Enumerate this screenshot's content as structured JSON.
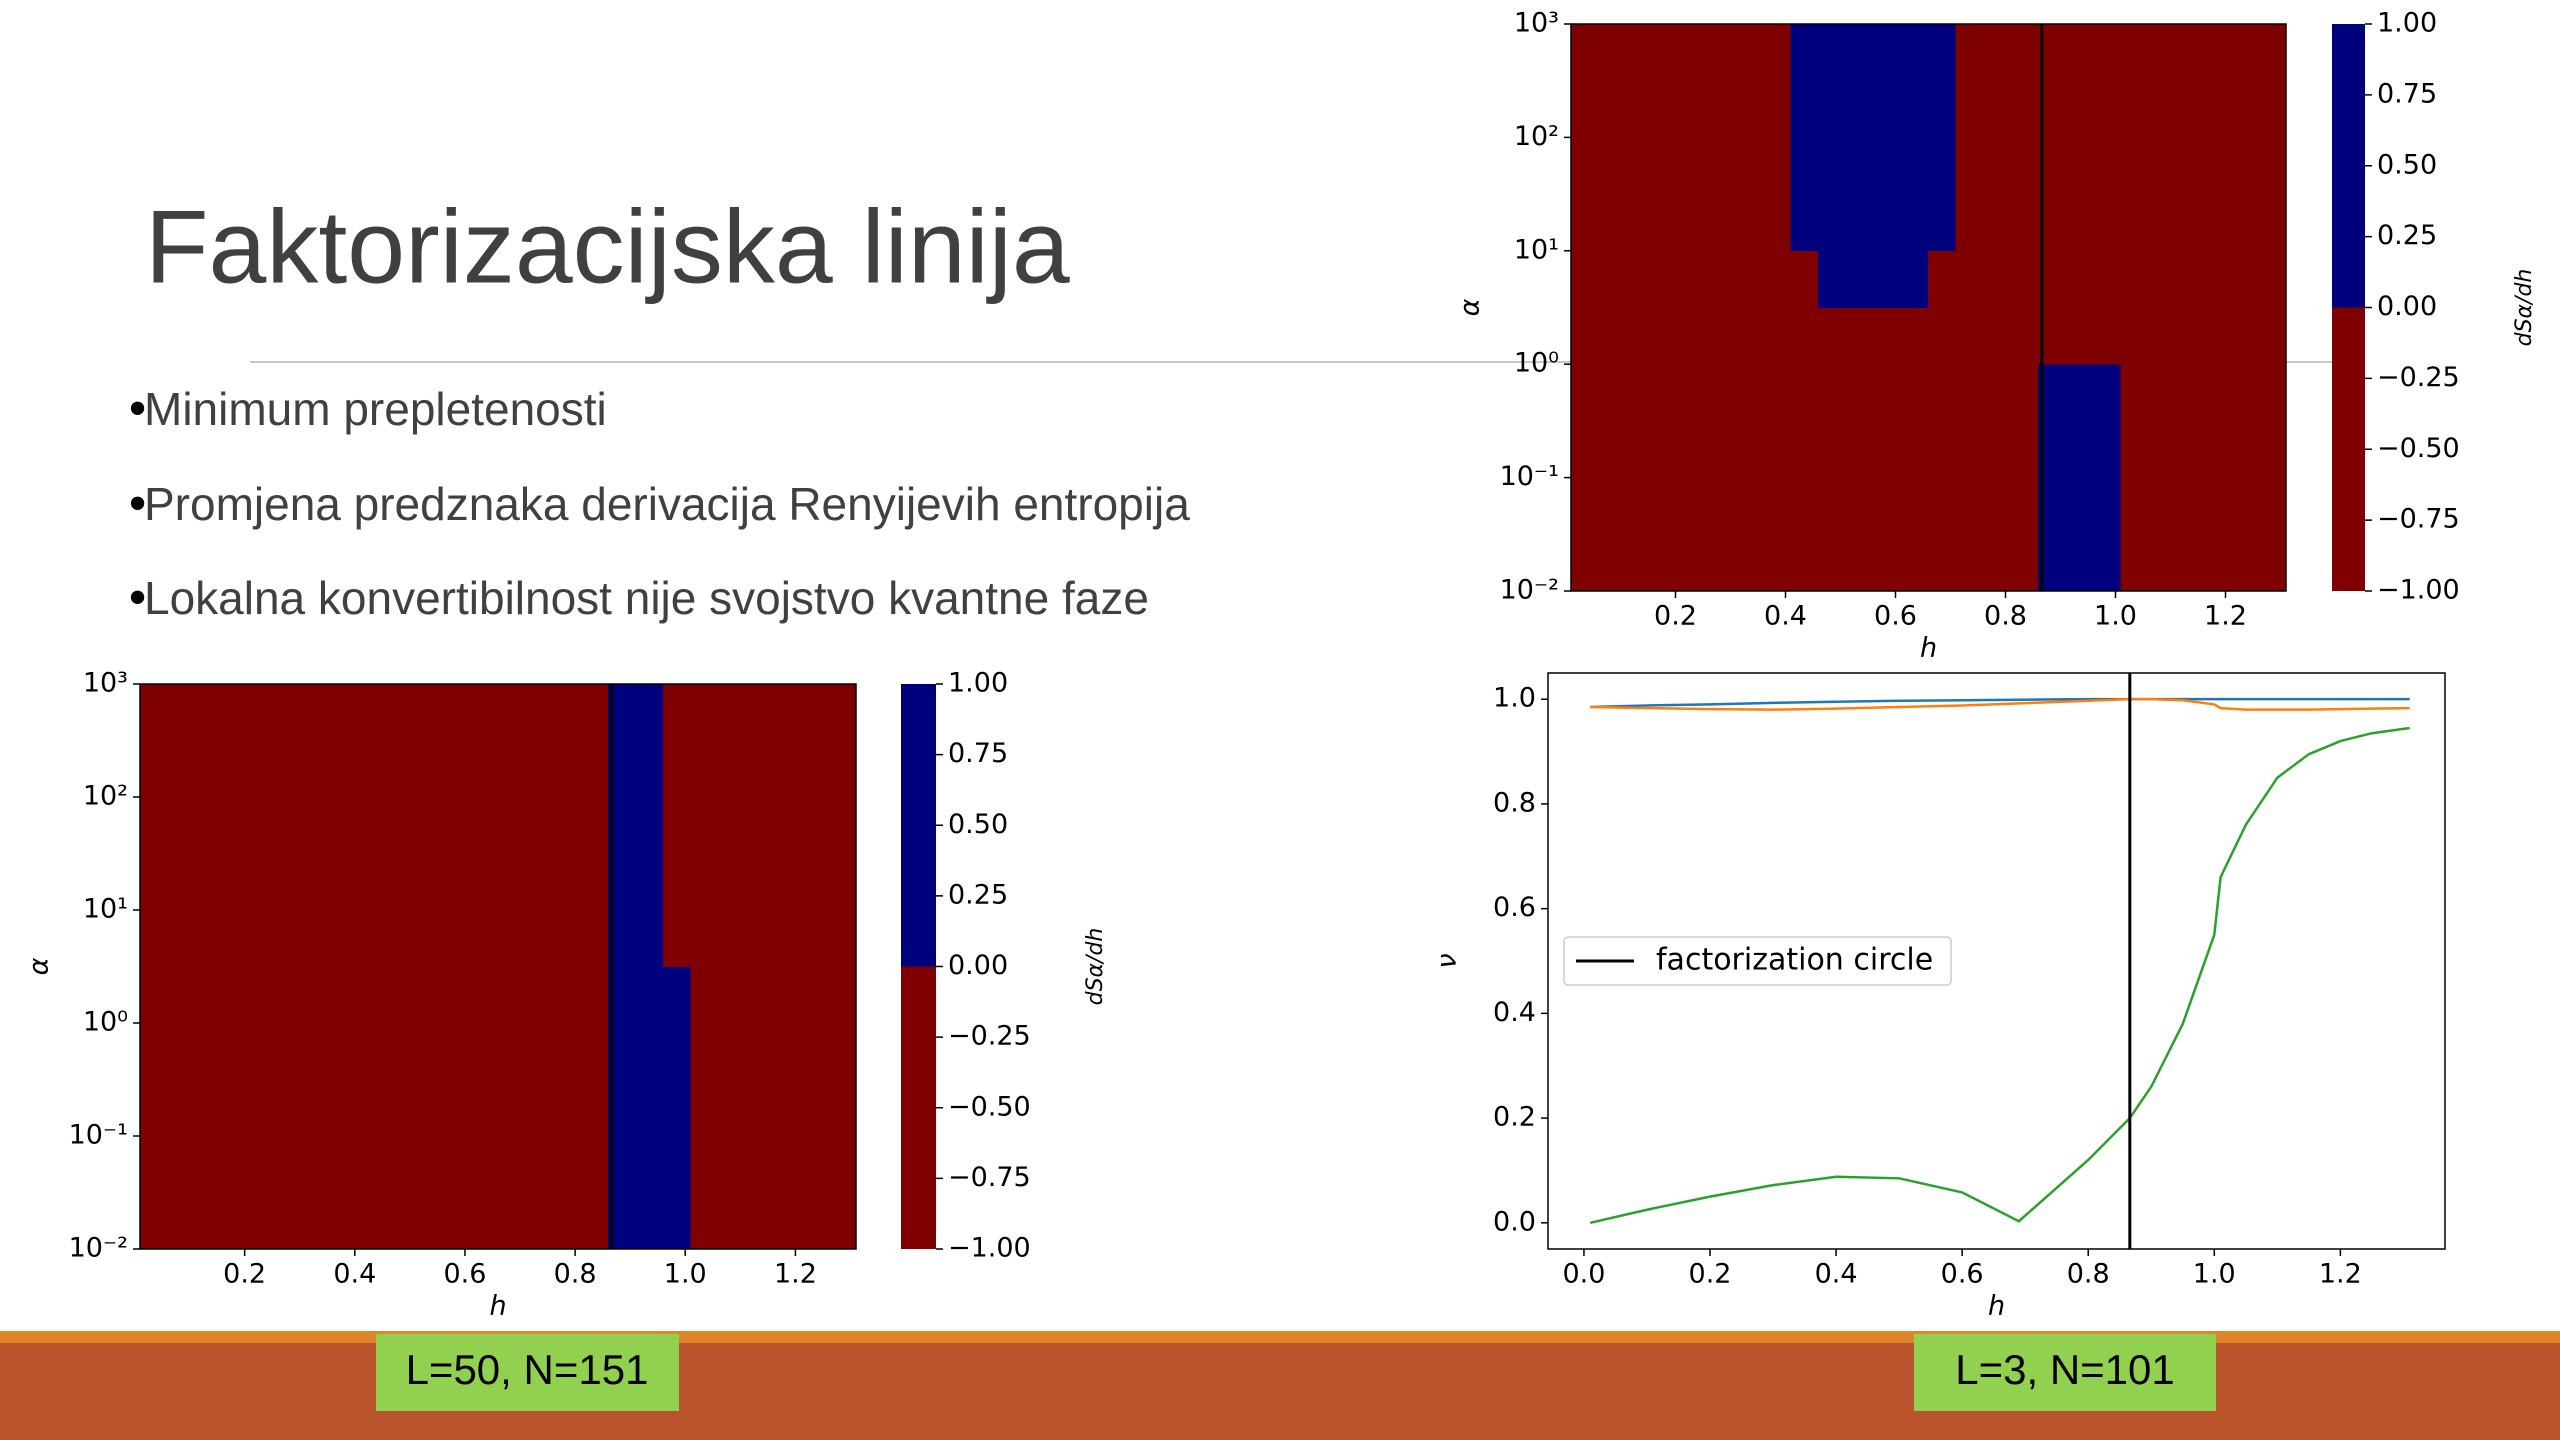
{
  "slide": {
    "title": "Faktorizacijska linija",
    "bullets": [
      "Minimum prepletenosti",
      "Promjena predznaka derivacija Renyijevih entropija",
      "Lokalna konvertibilnost nije svojstvo kvantne faze"
    ],
    "labels": [
      "L=50, N=151",
      "L=3, N=101"
    ]
  },
  "chart_data": [
    {
      "type": "heatmap",
      "x_label": "h",
      "y_label": "α",
      "colorbar_label": "dSα/dh",
      "log_y": true,
      "xedges": [
        0.01,
        0.06,
        0.11,
        0.16,
        0.21,
        0.26,
        0.31,
        0.36,
        0.41,
        0.46,
        0.51,
        0.56,
        0.61,
        0.66,
        0.71,
        0.76,
        0.81,
        0.86,
        0.91,
        0.96,
        1.01,
        1.06,
        1.11,
        1.16,
        1.21,
        1.26,
        1.31
      ],
      "yedges": [
        0.01,
        0.0316,
        0.1,
        0.316,
        1,
        3.16,
        10,
        31.6,
        100,
        316,
        1000
      ],
      "z": [
        [
          -1,
          -1,
          -1,
          -1,
          -1,
          -1,
          -1,
          -1,
          -1,
          -1,
          -1,
          -1,
          -1,
          -1,
          -1,
          -1,
          -1,
          1,
          1,
          1,
          -1,
          -1,
          -1,
          -1,
          -1,
          -1
        ],
        [
          -1,
          -1,
          -1,
          -1,
          -1,
          -1,
          -1,
          -1,
          -1,
          -1,
          -1,
          -1,
          -1,
          -1,
          -1,
          -1,
          -1,
          1,
          1,
          1,
          -1,
          -1,
          -1,
          -1,
          -1,
          -1
        ],
        [
          -1,
          -1,
          -1,
          -1,
          -1,
          -1,
          -1,
          -1,
          -1,
          -1,
          -1,
          -1,
          -1,
          -1,
          -1,
          -1,
          -1,
          1,
          1,
          1,
          -1,
          -1,
          -1,
          -1,
          -1,
          -1
        ],
        [
          -1,
          -1,
          -1,
          -1,
          -1,
          -1,
          -1,
          -1,
          -1,
          -1,
          -1,
          -1,
          -1,
          -1,
          -1,
          -1,
          -1,
          1,
          1,
          1,
          -1,
          -1,
          -1,
          -1,
          -1,
          -1
        ],
        [
          -1,
          -1,
          -1,
          -1,
          -1,
          -1,
          -1,
          -1,
          -1,
          -1,
          -1,
          -1,
          -1,
          -1,
          -1,
          -1,
          -1,
          -1,
          -1,
          -1,
          -1,
          -1,
          -1,
          -1,
          -1,
          -1
        ],
        [
          -1,
          -1,
          -1,
          -1,
          -1,
          -1,
          -1,
          -1,
          -1,
          1,
          1,
          1,
          1,
          -1,
          -1,
          -1,
          -1,
          -1,
          -1,
          -1,
          -1,
          -1,
          -1,
          -1,
          -1,
          -1
        ],
        [
          -1,
          -1,
          -1,
          -1,
          -1,
          -1,
          -1,
          -1,
          1,
          1,
          1,
          1,
          1,
          1,
          -1,
          -1,
          -1,
          -1,
          -1,
          -1,
          -1,
          -1,
          -1,
          -1,
          -1,
          -1
        ],
        [
          -1,
          -1,
          -1,
          -1,
          -1,
          -1,
          -1,
          -1,
          1,
          1,
          1,
          1,
          1,
          1,
          -1,
          -1,
          -1,
          -1,
          -1,
          -1,
          -1,
          -1,
          -1,
          -1,
          -1,
          -1
        ],
        [
          -1,
          -1,
          -1,
          -1,
          -1,
          -1,
          -1,
          -1,
          1,
          1,
          1,
          1,
          1,
          1,
          -1,
          -1,
          -1,
          -1,
          -1,
          -1,
          -1,
          -1,
          -1,
          -1,
          -1,
          -1
        ],
        [
          -1,
          -1,
          -1,
          -1,
          -1,
          -1,
          -1,
          -1,
          1,
          1,
          1,
          1,
          1,
          1,
          -1,
          -1,
          -1,
          -1,
          -1,
          -1,
          -1,
          -1,
          -1,
          -1,
          -1,
          -1
        ]
      ],
      "colors": {
        "negative": "#7f0000",
        "positive": "#00007f"
      },
      "vline": 0.866,
      "xlim": [
        0.01,
        1.31
      ],
      "ylim": [
        0.01,
        1000
      ],
      "xticks": [
        0.2,
        0.4,
        0.6,
        0.8,
        {
          "value": 1,
          "label": "1.0"
        },
        1.2
      ],
      "yticks": [
        {
          "value": 0.01,
          "label": "10⁻²"
        },
        {
          "value": 0.1,
          "label": "10⁻¹"
        },
        {
          "value": 1,
          "label": "10⁰"
        },
        {
          "value": 10,
          "label": "10¹"
        },
        {
          "value": 100,
          "label": "10²"
        },
        {
          "value": 1000,
          "label": "10³"
        }
      ],
      "clim": [
        -1,
        1
      ],
      "cticks": [
        {
          "value": -1,
          "label": "−1.00"
        },
        {
          "value": -0.75,
          "label": "−0.75"
        },
        {
          "value": -0.5,
          "label": "−0.50"
        },
        {
          "value": -0.25,
          "label": "−0.25"
        },
        {
          "value": 0,
          "label": "0.00"
        },
        {
          "value": 0.25,
          "label": "0.25"
        },
        {
          "value": 0.5,
          "label": "0.50"
        },
        {
          "value": 0.75,
          "label": "0.75"
        },
        {
          "value": 1,
          "label": "1.00"
        }
      ]
    },
    {
      "type": "heatmap",
      "x_label": "h",
      "y_label": "α",
      "colorbar_label": "dSα/dh",
      "log_y": true,
      "xedges": [
        0.01,
        0.06,
        0.11,
        0.16,
        0.21,
        0.26,
        0.31,
        0.36,
        0.41,
        0.46,
        0.51,
        0.56,
        0.61,
        0.66,
        0.71,
        0.76,
        0.81,
        0.86,
        0.91,
        0.96,
        1.01,
        1.06,
        1.11,
        1.16,
        1.21,
        1.26,
        1.31
      ],
      "yedges": [
        0.01,
        0.0316,
        0.1,
        0.316,
        1,
        3.16,
        10,
        31.6,
        100,
        316,
        1000
      ],
      "z": [
        [
          -1,
          -1,
          -1,
          -1,
          -1,
          -1,
          -1,
          -1,
          -1,
          -1,
          -1,
          -1,
          -1,
          -1,
          -1,
          -1,
          -1,
          1,
          1,
          1,
          -1,
          -1,
          -1,
          -1,
          -1,
          -1
        ],
        [
          -1,
          -1,
          -1,
          -1,
          -1,
          -1,
          -1,
          -1,
          -1,
          -1,
          -1,
          -1,
          -1,
          -1,
          -1,
          -1,
          -1,
          1,
          1,
          1,
          -1,
          -1,
          -1,
          -1,
          -1,
          -1
        ],
        [
          -1,
          -1,
          -1,
          -1,
          -1,
          -1,
          -1,
          -1,
          -1,
          -1,
          -1,
          -1,
          -1,
          -1,
          -1,
          -1,
          -1,
          1,
          1,
          1,
          -1,
          -1,
          -1,
          -1,
          -1,
          -1
        ],
        [
          -1,
          -1,
          -1,
          -1,
          -1,
          -1,
          -1,
          -1,
          -1,
          -1,
          -1,
          -1,
          -1,
          -1,
          -1,
          -1,
          -1,
          1,
          1,
          1,
          -1,
          -1,
          -1,
          -1,
          -1,
          -1
        ],
        [
          -1,
          -1,
          -1,
          -1,
          -1,
          -1,
          -1,
          -1,
          -1,
          -1,
          -1,
          -1,
          -1,
          -1,
          -1,
          -1,
          -1,
          1,
          1,
          1,
          -1,
          -1,
          -1,
          -1,
          -1,
          -1
        ],
        [
          -1,
          -1,
          -1,
          -1,
          -1,
          -1,
          -1,
          -1,
          -1,
          -1,
          -1,
          -1,
          -1,
          -1,
          -1,
          -1,
          -1,
          1,
          1,
          -1,
          -1,
          -1,
          -1,
          -1,
          -1,
          -1
        ],
        [
          -1,
          -1,
          -1,
          -1,
          -1,
          -1,
          -1,
          -1,
          -1,
          -1,
          -1,
          -1,
          -1,
          -1,
          -1,
          -1,
          -1,
          1,
          1,
          -1,
          -1,
          -1,
          -1,
          -1,
          -1,
          -1
        ],
        [
          -1,
          -1,
          -1,
          -1,
          -1,
          -1,
          -1,
          -1,
          -1,
          -1,
          -1,
          -1,
          -1,
          -1,
          -1,
          -1,
          -1,
          1,
          1,
          -1,
          -1,
          -1,
          -1,
          -1,
          -1,
          -1
        ],
        [
          -1,
          -1,
          -1,
          -1,
          -1,
          -1,
          -1,
          -1,
          -1,
          -1,
          -1,
          -1,
          -1,
          -1,
          -1,
          -1,
          -1,
          1,
          1,
          -1,
          -1,
          -1,
          -1,
          -1,
          -1,
          -1
        ],
        [
          -1,
          -1,
          -1,
          -1,
          -1,
          -1,
          -1,
          -1,
          -1,
          -1,
          -1,
          -1,
          -1,
          -1,
          -1,
          -1,
          -1,
          1,
          1,
          -1,
          -1,
          -1,
          -1,
          -1,
          -1,
          -1
        ]
      ],
      "colors": {
        "negative": "#7f0000",
        "positive": "#00007f"
      },
      "vline": 0.866,
      "xlim": [
        0.01,
        1.31
      ],
      "ylim": [
        0.01,
        1000
      ],
      "xticks": [
        0.2,
        0.4,
        0.6,
        0.8,
        {
          "value": 1,
          "label": "1.0"
        },
        1.2
      ],
      "yticks": [
        {
          "value": 0.01,
          "label": "10⁻²"
        },
        {
          "value": 0.1,
          "label": "10⁻¹"
        },
        {
          "value": 1,
          "label": "10⁰"
        },
        {
          "value": 10,
          "label": "10¹"
        },
        {
          "value": 100,
          "label": "10²"
        },
        {
          "value": 1000,
          "label": "10³"
        }
      ],
      "clim": [
        -1,
        1
      ],
      "cticks": [
        {
          "value": -1,
          "label": "−1.00"
        },
        {
          "value": -0.75,
          "label": "−0.75"
        },
        {
          "value": -0.5,
          "label": "−0.50"
        },
        {
          "value": -0.25,
          "label": "−0.25"
        },
        {
          "value": 0,
          "label": "0.00"
        },
        {
          "value": 0.25,
          "label": "0.25"
        },
        {
          "value": 0.5,
          "label": "0.50"
        },
        {
          "value": 0.75,
          "label": "0.75"
        },
        {
          "value": 1,
          "label": "1.00"
        }
      ]
    },
    {
      "type": "line",
      "x_label": "h",
      "y_label": "ν",
      "x": [
        0.01,
        0.1,
        0.2,
        0.3,
        0.4,
        0.5,
        0.6,
        0.69,
        0.8,
        0.866,
        0.9,
        0.95,
        1.0,
        1.01,
        1.05,
        1.1,
        1.15,
        1.2,
        1.25,
        1.31
      ],
      "series": [
        {
          "color": "#1f77b4",
          "values": [
            0.985,
            0.988,
            0.99,
            0.993,
            0.995,
            0.997,
            0.998,
            0.999,
            1.0,
            1.0,
            1.0,
            1.0,
            1.0,
            1.0,
            1.0,
            1.0,
            1.0,
            1.0,
            1.0,
            1.0
          ]
        },
        {
          "color": "#ff7f0e",
          "values": [
            0.985,
            0.983,
            0.981,
            0.98,
            0.982,
            0.985,
            0.988,
            0.992,
            0.997,
            1.0,
            1.0,
            0.998,
            0.99,
            0.983,
            0.98,
            0.98,
            0.98,
            0.981,
            0.982,
            0.983
          ]
        },
        {
          "color": "#2ca02c",
          "values": [
            0.0,
            0.025,
            0.05,
            0.072,
            0.088,
            0.085,
            0.058,
            0.003,
            0.12,
            0.2,
            0.26,
            0.38,
            0.55,
            0.66,
            0.76,
            0.85,
            0.895,
            0.92,
            0.935,
            0.945
          ]
        }
      ],
      "vline": {
        "x": 0.866,
        "label": "factorization circle"
      },
      "legend_loc": "center left",
      "xlim": [
        -0.057,
        1.366
      ],
      "ylim": [
        -0.05,
        1.05
      ],
      "xticks": [
        {
          "value": 0,
          "label": "0.0"
        },
        0.2,
        0.4,
        0.6,
        0.8,
        {
          "value": 1,
          "label": "1.0"
        },
        1.2
      ],
      "yticks": [
        {
          "value": 0,
          "label": "0.0"
        },
        0.2,
        0.4,
        0.6,
        0.8,
        {
          "value": 1,
          "label": "1.0"
        }
      ]
    }
  ]
}
